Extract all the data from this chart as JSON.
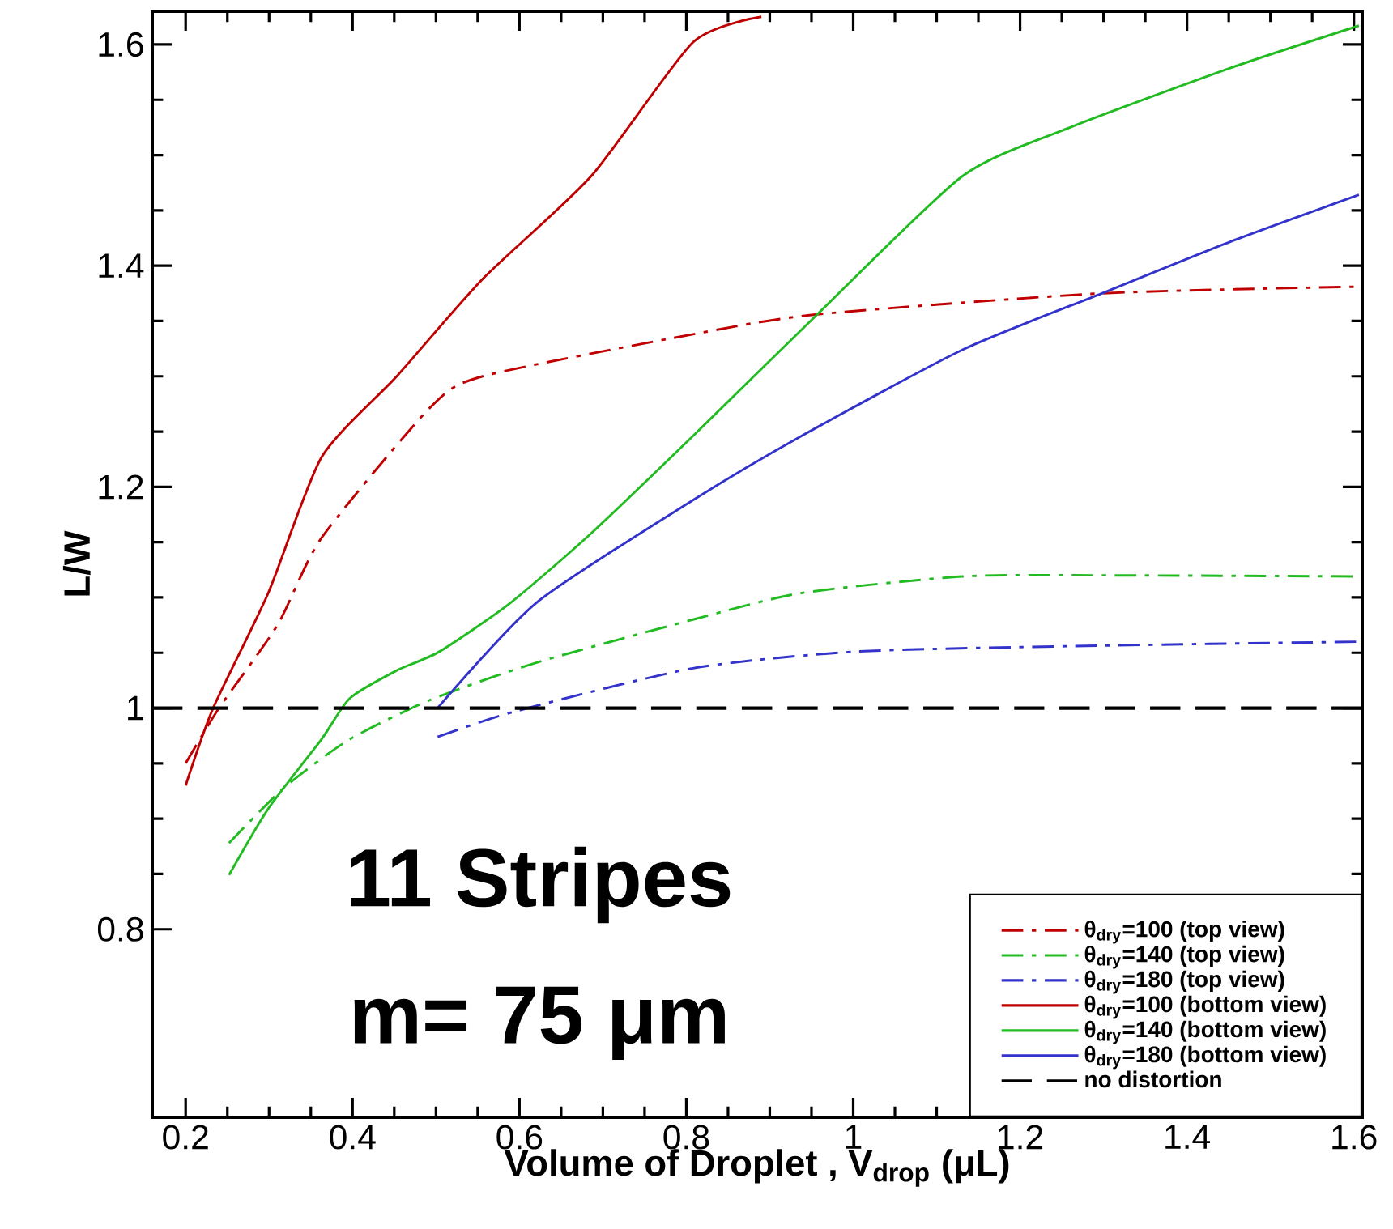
{
  "chart_data": {
    "type": "line",
    "xlabel": "Volume of Droplet , V$_{drop}$ (μL)",
    "ylabel": "L/W",
    "xlim": [
      0.16,
      1.61
    ],
    "ylim": [
      0.63,
      1.63
    ],
    "xticks": [
      0.2,
      0.4,
      0.6,
      0.8,
      1,
      1.2,
      1.4,
      1.6
    ],
    "yticks": [
      0.8,
      1,
      1.2,
      1.4,
      1.6
    ],
    "grid": false,
    "legend": "bottom right",
    "marker": "none",
    "annotations": [
      "11 Stripes",
      "m= 75 μm"
    ],
    "series": [
      {
        "name": "θ$_{dry}$=100 (top view)",
        "color": "#c00000",
        "line_style": "dashdot",
        "x": [
          0.2,
          0.24,
          0.31,
          0.363,
          0.492,
          0.556,
          0.808,
          0.957,
          1.298,
          1.606
        ],
        "values": [
          0.95,
          1.0,
          1.075,
          1.154,
          1.271,
          1.3,
          1.338,
          1.356,
          1.375,
          1.381
        ]
      },
      {
        "name": "θ$_{dry}$=140 (top view)",
        "color": "#22bb22",
        "line_style": "dashdot",
        "x": [
          0.252,
          0.318,
          0.395,
          0.492,
          0.62,
          0.808,
          0.938,
          1.131,
          1.29,
          1.606
        ],
        "values": [
          0.878,
          0.928,
          0.971,
          1.007,
          1.041,
          1.08,
          1.104,
          1.119,
          1.12,
          1.119
        ]
      },
      {
        "name": "θ$_{dry}$=180 (top view)",
        "color": "#3333cc",
        "line_style": "dashdot",
        "x": [
          0.502,
          0.595,
          0.808,
          1.002,
          1.26,
          1.606
        ],
        "values": [
          0.974,
          0.997,
          1.036,
          1.051,
          1.056,
          1.06
        ]
      },
      {
        "name": "θ$_{dry}$=100 (bottom view)",
        "color": "#c00000",
        "line_style": "solid",
        "x": [
          0.2,
          0.233,
          0.299,
          0.363,
          0.453,
          0.556,
          0.686,
          0.808,
          0.89
        ],
        "values": [
          0.93,
          1.0,
          1.104,
          1.227,
          1.3,
          1.388,
          1.481,
          1.602,
          1.625
        ]
      },
      {
        "name": "θ$_{dry}$=140 (bottom view)",
        "color": "#22bb22",
        "line_style": "solid",
        "x": [
          0.252,
          0.299,
          0.363,
          0.397,
          0.453,
          0.504,
          0.589,
          0.686,
          0.808,
          0.957,
          1.131,
          1.26,
          1.453,
          1.606
        ],
        "values": [
          0.849,
          0.909,
          0.972,
          1.009,
          1.034,
          1.051,
          1.095,
          1.158,
          1.246,
          1.356,
          1.481,
          1.525,
          1.579,
          1.617
        ]
      },
      {
        "name": "θ$_{dry}$=180 (bottom view)",
        "color": "#3333cc",
        "line_style": "solid",
        "x": [
          0.502,
          0.62,
          0.808,
          0.938,
          1.131,
          1.298,
          1.453,
          1.606
        ],
        "values": [
          1.0,
          1.095,
          1.188,
          1.246,
          1.324,
          1.375,
          1.422,
          1.464
        ]
      },
      {
        "name": "no distortion",
        "color": "#000000",
        "line_style": "dashed",
        "x": [
          0.16,
          1.61
        ],
        "values": [
          1,
          1
        ]
      }
    ]
  }
}
